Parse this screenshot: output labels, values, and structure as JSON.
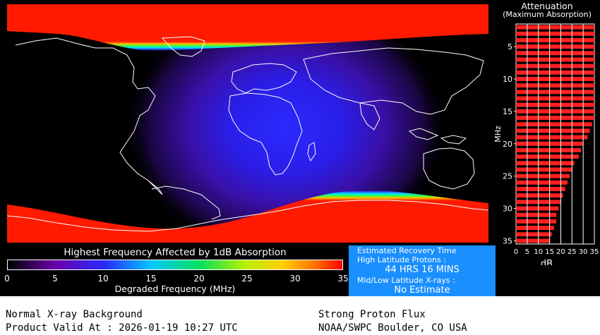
{
  "map": {
    "legend_title": "Highest Frequency Affected by 1dB Absorption",
    "colorbar_ticks": [
      "0",
      "5",
      "10",
      "15",
      "20",
      "25",
      "30",
      "35"
    ],
    "colorbar_xlabel": "Degraded Frequency (MHz)",
    "colors": {
      "background": "#000000",
      "polar": "#ff0000",
      "day_center": "#2020ff",
      "coastline": "#ffffff"
    },
    "data": {
      "polar_cap_absorption_mhz": 35,
      "dayside_peak_mhz": 9
    }
  },
  "recovery": {
    "title": "Estimated Recovery Time",
    "proton_label": "High Latitude Protons :",
    "proton_value": "44 HRS 16 MINS",
    "xray_label": "Mid/Low Latitude X-rays :",
    "xray_value": "No Estimate",
    "bg_color": "#1a8fff"
  },
  "chart_data": {
    "type": "bar",
    "title": "Attenuation",
    "subtitle": "(Maximum Absorption)",
    "ylabel": "MHz",
    "xlabel": "dB",
    "xlim": [
      0,
      35
    ],
    "ylim": [
      35,
      2
    ],
    "x_ticks": [
      "0",
      "5",
      "10",
      "15",
      "20",
      "25",
      "30",
      "35"
    ],
    "y_ticks": [
      "5",
      "10",
      "15",
      "20",
      "25",
      "30",
      "35"
    ],
    "grid": true,
    "categories": [
      2,
      3,
      4,
      5,
      6,
      7,
      8,
      9,
      10,
      11,
      12,
      13,
      14,
      15,
      16,
      17,
      18,
      19,
      20,
      21,
      22,
      23,
      24,
      25,
      26,
      27,
      28,
      29,
      30,
      31,
      32,
      33,
      34,
      35
    ],
    "values": [
      35,
      35,
      35,
      35,
      35,
      35,
      35,
      35,
      35,
      35,
      35,
      35,
      35,
      35,
      35,
      34,
      33,
      32,
      30,
      29,
      28,
      26,
      25,
      24,
      23,
      22,
      21,
      20,
      19,
      18,
      18,
      17,
      16,
      15
    ]
  },
  "footer": {
    "xray_status": "Normal X-ray Background",
    "valid_at": "Product Valid At : 2026-01-19 10:27 UTC",
    "proton_status": "Strong Proton Flux",
    "source": "NOAA/SWPC Boulder, CO USA"
  }
}
